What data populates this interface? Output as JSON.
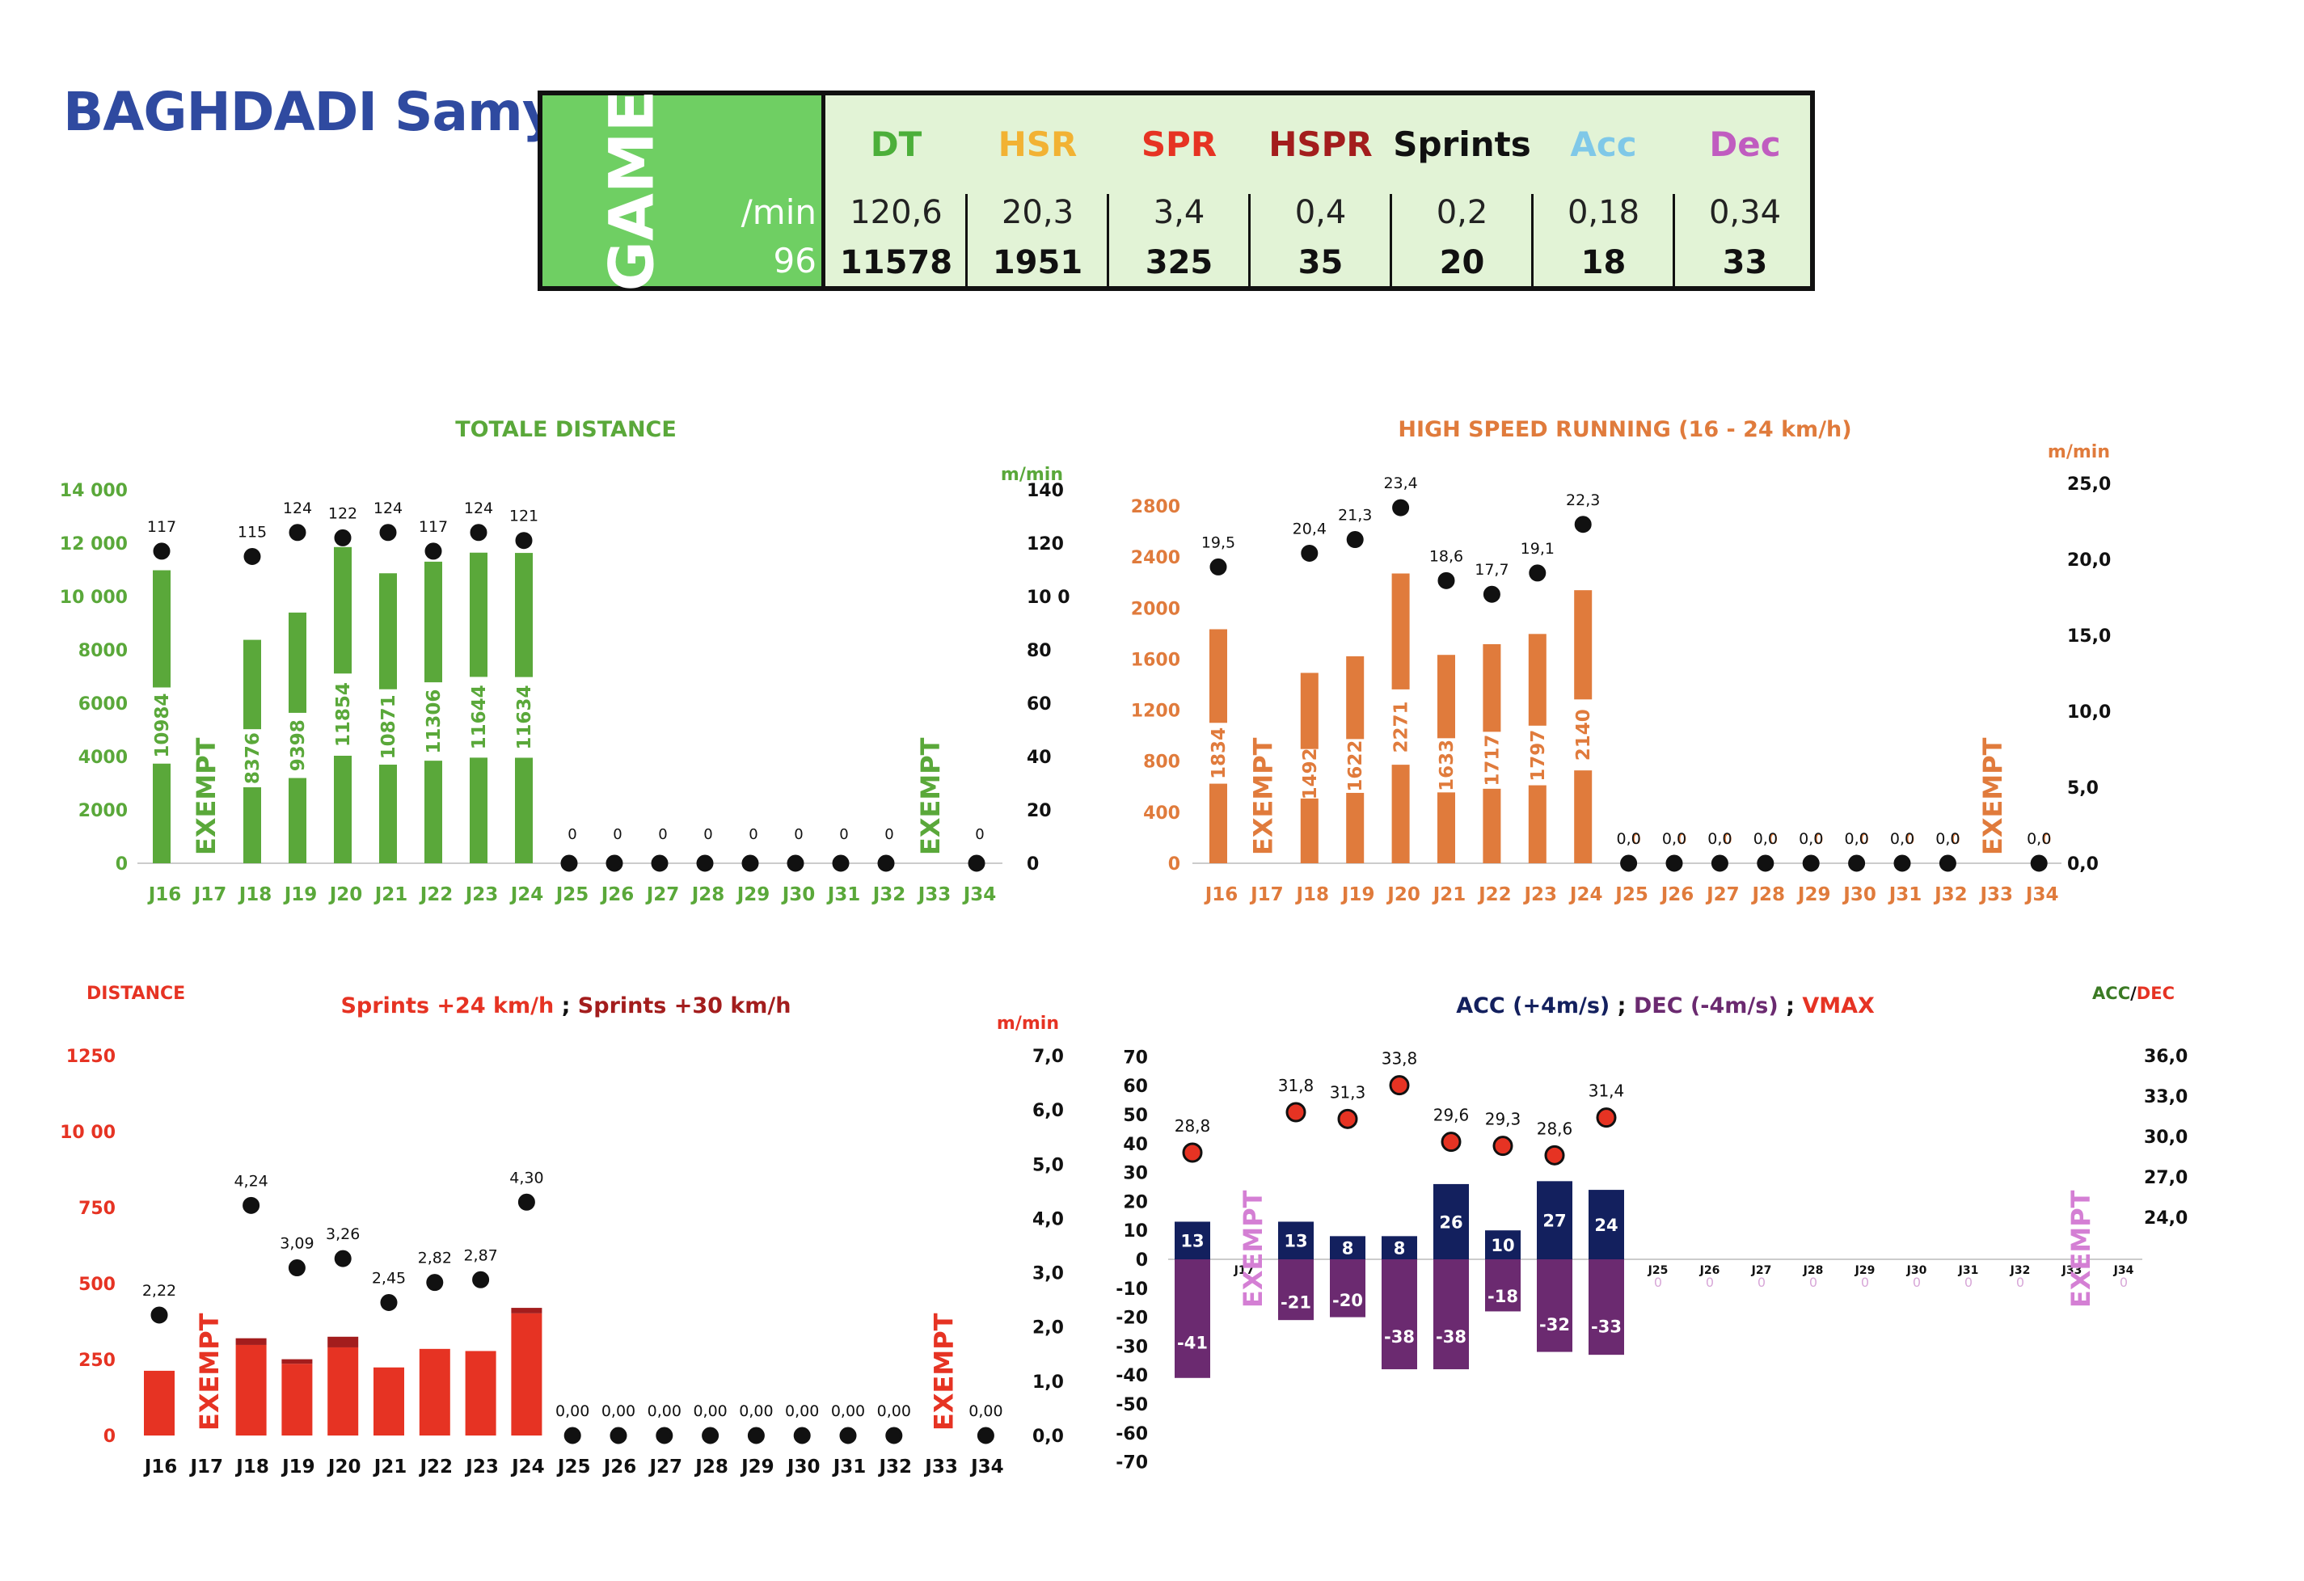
{
  "player": {
    "name": "BAGHDADI Samy"
  },
  "summary": {
    "game_label": "GAME",
    "per_min_label": "/min",
    "minutes": "96",
    "metrics": [
      {
        "label": "DT",
        "color": "#4caf3a",
        "per_min": "120,6",
        "total": "11578"
      },
      {
        "label": "HSR",
        "color": "#f2b233",
        "per_min": "20,3",
        "total": "1951"
      },
      {
        "label": "SPR",
        "color": "#e63323",
        "per_min": "3,4",
        "total": "325"
      },
      {
        "label": "HSPR",
        "color": "#a31d1d",
        "per_min": "0,4",
        "total": "35"
      },
      {
        "label": "Sprints",
        "color": "#111111",
        "per_min": "0,2",
        "total": "20"
      },
      {
        "label": "Acc",
        "color": "#7fc8e8",
        "per_min": "0,18",
        "total": "18"
      },
      {
        "label": "Dec",
        "color": "#c05cc0",
        "per_min": "0,34",
        "total": "33"
      }
    ]
  },
  "chart_data": [
    {
      "id": "td",
      "type": "bar",
      "title": "TOTALE DISTANCE",
      "color": "#5aa83a",
      "categories": [
        "J16",
        "J17",
        "J18",
        "J19",
        "J20",
        "J21",
        "J22",
        "J23",
        "J24",
        "J25",
        "J26",
        "J27",
        "J28",
        "J29",
        "J30",
        "J31",
        "J32",
        "J33",
        "J34"
      ],
      "values": [
        10984,
        null,
        8376,
        9398,
        11854,
        10871,
        11306,
        11644,
        11634,
        0,
        0,
        0,
        0,
        0,
        0,
        0,
        0,
        null,
        0
      ],
      "value_labels": [
        "10984",
        "",
        "8376",
        "9398",
        "11854",
        "10871",
        "11306",
        "11644",
        "11634",
        "0",
        "0",
        "0",
        "0",
        "0",
        "0",
        "0",
        "0",
        "",
        "0"
      ],
      "rate": [
        117,
        null,
        115,
        124,
        122,
        124,
        117,
        124,
        121,
        0,
        0,
        0,
        0,
        0,
        0,
        0,
        0,
        null,
        0
      ],
      "rate_labels": [
        "117",
        "",
        "115",
        "124",
        "122",
        "124",
        "117",
        "124",
        "121",
        "",
        "",
        "",
        "",
        "",
        "",
        "",
        "",
        "",
        ""
      ],
      "exempt": [
        "J17",
        "J33"
      ],
      "exempt_label": "EXEMPT",
      "ylim": [
        0,
        14000
      ],
      "yticks": [
        "0",
        "2000",
        "4000",
        "6000",
        "8000",
        "10 000",
        "12 000",
        "14 000"
      ],
      "y2label": "m/min",
      "y2lim": [
        0,
        140
      ],
      "y2ticks": [
        "0",
        "20",
        "40",
        "60",
        "80",
        "10 0",
        "120",
        "140"
      ]
    },
    {
      "id": "hsr",
      "type": "bar",
      "title": "HIGH SPEED RUNNING  (16 - 24 km/h)",
      "color": "#e07b3c",
      "categories": [
        "J16",
        "J17",
        "J18",
        "J19",
        "J20",
        "J21",
        "J22",
        "J23",
        "J24",
        "J25",
        "J26",
        "J27",
        "J28",
        "J29",
        "J30",
        "J31",
        "J32",
        "J33",
        "J34"
      ],
      "values": [
        1834,
        null,
        1492,
        1622,
        2271,
        1633,
        1717,
        1797,
        2140,
        0,
        0,
        0,
        0,
        0,
        0,
        0,
        0,
        null,
        0
      ],
      "value_labels": [
        "1834",
        "",
        "1492",
        "1622",
        "2271",
        "1633",
        "1717",
        "1797",
        "2140",
        "0",
        "0",
        "0",
        "0",
        "0",
        "0",
        "0",
        "0",
        "",
        "0"
      ],
      "rate": [
        19.5,
        null,
        20.4,
        21.3,
        23.4,
        18.6,
        17.7,
        19.1,
        22.3,
        0,
        0,
        0,
        0,
        0,
        0,
        0,
        0,
        null,
        0
      ],
      "rate_labels": [
        "19,5",
        "",
        "20,4",
        "21,3",
        "23,4",
        "18,6",
        "17,7",
        "19,1",
        "22,3",
        "0,0",
        "0,0",
        "0,0",
        "0,0",
        "0,0",
        "0,0",
        "0,0",
        "0,0",
        "",
        "0,0"
      ],
      "exempt": [
        "J17",
        "J33"
      ],
      "exempt_label": "EXEMPT",
      "ylim": [
        0,
        2800
      ],
      "yticks": [
        "0",
        "400",
        "800",
        "1200",
        "1600",
        "2000",
        "2400",
        "2800"
      ],
      "y2label": "m/min",
      "y2lim": [
        0,
        25
      ],
      "y2ticks": [
        "0,0",
        "5,0",
        "10,0",
        "15,0",
        "20,0",
        "25,0"
      ]
    },
    {
      "id": "spr",
      "type": "bar",
      "title_parts": [
        "Sprints +24 km/h",
        " ; ",
        "Sprints +30  km/h"
      ],
      "ylabel": "DISTANCE",
      "color": "#e63323",
      "color2": "#a31d1d",
      "categories": [
        "J16",
        "J17",
        "J18",
        "J19",
        "J20",
        "J21",
        "J22",
        "J23",
        "J24",
        "J25",
        "J26",
        "J27",
        "J28",
        "J29",
        "J30",
        "J31",
        "J32",
        "J33",
        "J34"
      ],
      "values": [
        213,
        null,
        298,
        236,
        290,
        224,
        285,
        278,
        402,
        0,
        0,
        0,
        0,
        0,
        0,
        0,
        0,
        null,
        0
      ],
      "values2": [
        0,
        null,
        22,
        15,
        35,
        0,
        0,
        0,
        18,
        0,
        0,
        0,
        0,
        0,
        0,
        0,
        0,
        null,
        0
      ],
      "rate": [
        2.22,
        null,
        4.24,
        3.09,
        3.26,
        2.45,
        2.82,
        2.87,
        4.3,
        0,
        0,
        0,
        0,
        0,
        0,
        0,
        0,
        null,
        0
      ],
      "rate_labels": [
        "2,22",
        "",
        "4,24",
        "3,09",
        "3,26",
        "2,45",
        "2,82",
        "2,87",
        "4,30",
        "0,00",
        "0,00",
        "0,00",
        "0,00",
        "0,00",
        "0,00",
        "0,00",
        "0,00",
        "",
        "0,00"
      ],
      "exempt": [
        "J17",
        "J33"
      ],
      "exempt_label": "EXEMPT",
      "ylim": [
        0,
        1250
      ],
      "yticks": [
        "0",
        "250",
        "500",
        "750",
        "10 00",
        "1250"
      ],
      "y2label": "m/min",
      "y2lim": [
        0,
        7
      ],
      "y2ticks": [
        "0,0",
        "1,0",
        "2,0",
        "3,0",
        "4,0",
        "5,0",
        "6,0",
        "7,0"
      ]
    },
    {
      "id": "acc",
      "type": "bar",
      "title_parts": [
        "ACC (+4m/s)",
        " ; ",
        "DEC (-4m/s)",
        " ; ",
        "VMAX"
      ],
      "y2label_parts": [
        "ACC",
        "/",
        "DEC"
      ],
      "color": "#13205e",
      "color2": "#6b2a70",
      "categories": [
        "J16",
        "J17",
        "J18",
        "J19",
        "J20",
        "J21",
        "J22",
        "J23",
        "J24",
        "J25",
        "J26",
        "J27",
        "J28",
        "J29",
        "J30",
        "J31",
        "J32",
        "J33",
        "J34"
      ],
      "acc": [
        13,
        null,
        13,
        8,
        8,
        26,
        10,
        27,
        24,
        0,
        0,
        0,
        0,
        0,
        0,
        0,
        0,
        null,
        0
      ],
      "dec": [
        -41,
        null,
        -21,
        -20,
        -38,
        -38,
        -18,
        -32,
        -33,
        0,
        0,
        0,
        0,
        0,
        0,
        0,
        0,
        null,
        0
      ],
      "acc_labels": [
        "13",
        "",
        "13",
        "8",
        "8",
        "26",
        "10",
        "27",
        "24",
        "",
        "",
        "",
        "",
        "",
        "",
        "",
        "",
        "",
        ""
      ],
      "dec_labels": [
        "-41",
        "",
        "-21",
        "-20",
        "-38",
        "-38",
        "-18",
        "-32",
        "-33",
        "0",
        "0",
        "0",
        "0",
        "0",
        "0",
        "0",
        "0",
        "",
        "0"
      ],
      "vmax": [
        28.8,
        null,
        31.8,
        31.3,
        33.8,
        29.6,
        29.3,
        28.6,
        31.4,
        null,
        null,
        null,
        null,
        null,
        null,
        null,
        null,
        null,
        null
      ],
      "vmax_labels": [
        "28,8",
        "",
        "31,8",
        "31,3",
        "33,8",
        "29,6",
        "29,3",
        "28,6",
        "31,4",
        "",
        "",
        "",
        "",
        "",
        "",
        "",
        "",
        "",
        ""
      ],
      "exempt": [
        "J17",
        "J33"
      ],
      "exempt_label": "EXEMPT",
      "ylim": [
        -70,
        70
      ],
      "yticks": [
        "-70",
        "-60",
        "-50",
        "-40",
        "-30",
        "-20",
        "-10",
        "0",
        "10",
        "20",
        "30",
        "40",
        "50",
        "60",
        "70"
      ],
      "y2lim": [
        18,
        36
      ],
      "y2ticks": [
        "24,0",
        "27,0",
        "30,0",
        "33,0",
        "36,0"
      ]
    }
  ]
}
